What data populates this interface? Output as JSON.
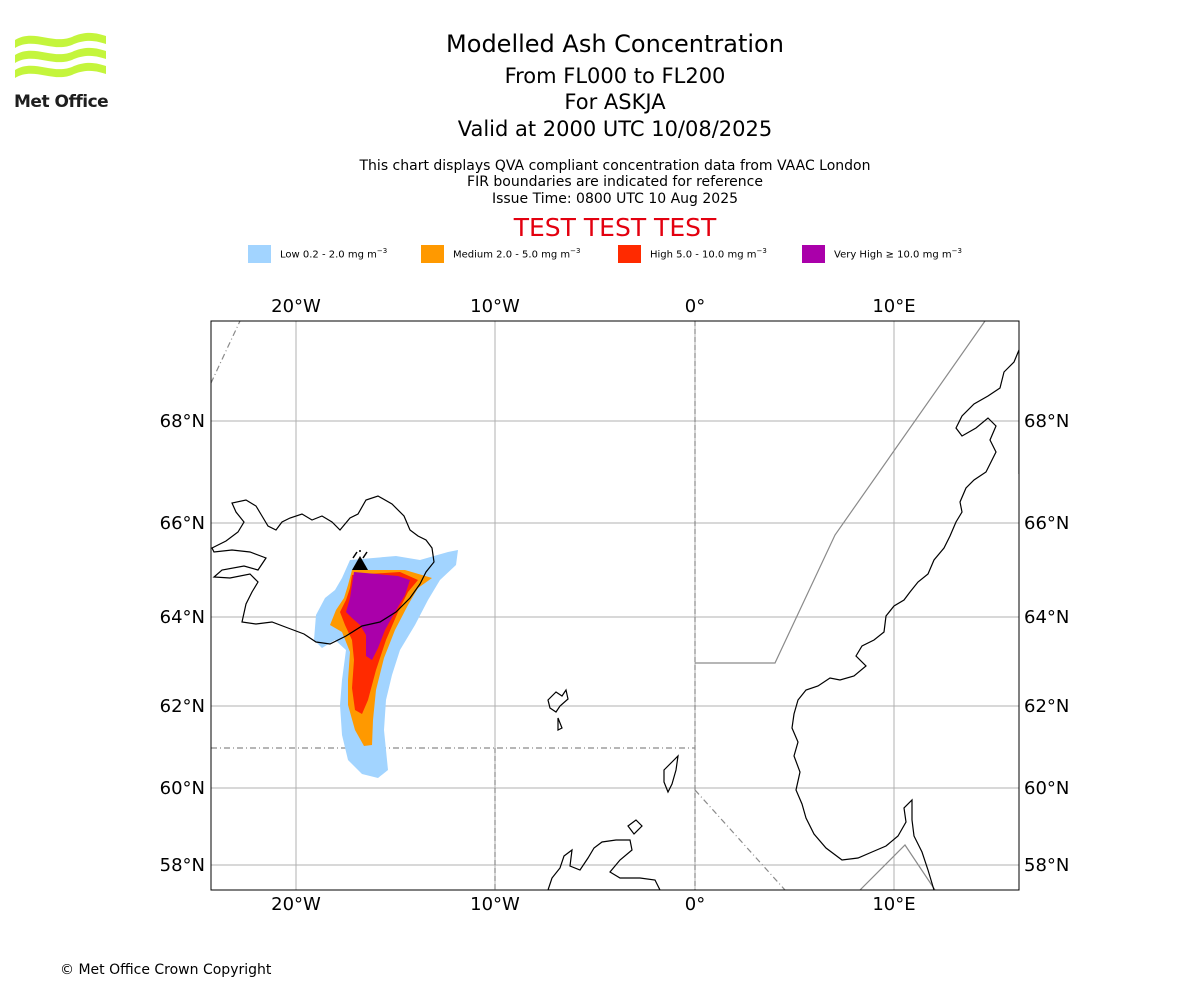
{
  "logo": {
    "text": "Met Office",
    "color": "#c4f53c"
  },
  "header": {
    "title": "Modelled Ash Concentration",
    "levels": "From FL000 to FL200",
    "volcano": "For ASKJA",
    "valid": "Valid at 2000 UTC 10/08/2025"
  },
  "notes": {
    "line1": "This chart displays QVA compliant concentration data from VAAC London",
    "line2": "FIR boundaries are indicated for reference",
    "issue": "Issue Time: 0800 UTC 10 Aug 2025"
  },
  "banner": {
    "text": "TEST TEST TEST",
    "color": "#e3000f"
  },
  "legend": [
    {
      "label": "Low 0.2 - 2.0 mg m",
      "sup": "−3",
      "color": "#a2d4ff"
    },
    {
      "label": "Medium 2.0 - 5.0 mg m",
      "sup": "−3",
      "color": "#ff9900"
    },
    {
      "label": "High 5.0 - 10.0 mg m",
      "sup": "−3",
      "color": "#ff2a00"
    },
    {
      "label": "Very High ≥ 10.0 mg m",
      "sup": "−3",
      "color": "#aa00aa"
    }
  ],
  "map": {
    "longitude_labels": [
      "20°W",
      "10°W",
      "0°",
      "10°E"
    ],
    "latitude_labels": [
      "68°N",
      "66°N",
      "64°N",
      "62°N",
      "60°N",
      "58°N"
    ],
    "extent": {
      "lon_min": -24.2,
      "lon_max": 16.2,
      "lat_min": 57.5,
      "lat_max": 70.0
    }
  },
  "footer": {
    "copyright": "© Met Office Crown Copyright"
  }
}
